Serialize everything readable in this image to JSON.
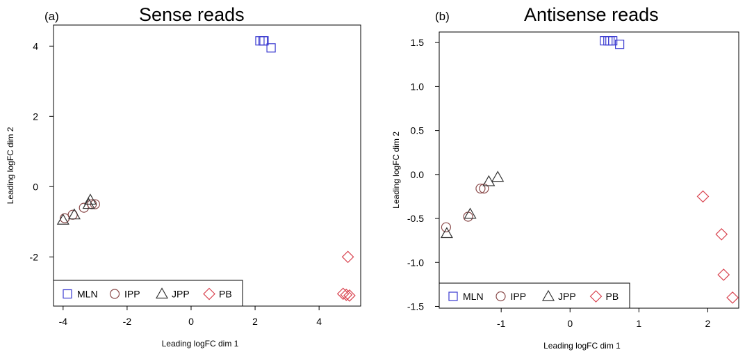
{
  "chart_data": [
    {
      "type": "scatter",
      "panel_label": "(a)",
      "title": "Sense reads",
      "xlabel": "Leading logFC dim 1",
      "ylabel": "Leading logFC dim 2",
      "xlim": [
        -4.3,
        5.3
      ],
      "ylim": [
        -3.4,
        4.6
      ],
      "xticks": [
        -4,
        -2,
        0,
        2,
        4
      ],
      "xtick_labels": [
        "-4",
        "-2",
        "0",
        "2",
        "4"
      ],
      "yticks": [
        -2,
        0,
        2,
        4
      ],
      "ytick_labels": [
        "-2",
        "0",
        "2",
        "4"
      ],
      "legend_placement": "bottom-left",
      "series": [
        {
          "name": "MLN",
          "marker": "square",
          "color": "#3a3ad0",
          "x": [
            2.15,
            2.25,
            2.28,
            2.5
          ],
          "y": [
            4.15,
            4.15,
            4.15,
            3.95
          ]
        },
        {
          "name": "IPP",
          "marker": "circle",
          "color": "#8a4a4a",
          "x": [
            -3.95,
            -3.7,
            -3.35,
            -3.0,
            -3.1
          ],
          "y": [
            -0.9,
            -0.8,
            -0.6,
            -0.5,
            -0.5
          ]
        },
        {
          "name": "JPP",
          "marker": "triangle",
          "color": "#333333",
          "x": [
            -4.0,
            -3.65,
            -3.2,
            -3.15
          ],
          "y": [
            -0.95,
            -0.8,
            -0.5,
            -0.38
          ]
        },
        {
          "name": "PB",
          "marker": "diamond",
          "color": "#d9434f",
          "x": [
            4.9,
            4.75,
            4.85,
            4.95
          ],
          "y": [
            -2.0,
            -3.05,
            -3.08,
            -3.1
          ]
        }
      ]
    },
    {
      "type": "scatter",
      "panel_label": "(b)",
      "title": "Antisense reads",
      "xlabel": "Leading logFC dim 1",
      "ylabel": "Leading logFC dim 2",
      "xlim": [
        -1.9,
        2.45
      ],
      "ylim": [
        -1.52,
        1.62
      ],
      "xticks": [
        -1,
        0,
        1,
        2
      ],
      "xtick_labels": [
        "-1",
        "0",
        "1",
        "2"
      ],
      "yticks": [
        1.5,
        1.0,
        0.5,
        0.0,
        -0.5,
        -1.0,
        -1.5
      ],
      "ytick_labels": [
        "1.5",
        "1.0",
        "0.5",
        "0.0",
        "-0.5",
        "-1.0",
        "-1.5"
      ],
      "legend_placement": "bottom-left",
      "series": [
        {
          "name": "MLN",
          "marker": "square",
          "color": "#3a3ad0",
          "x": [
            0.5,
            0.55,
            0.58,
            0.62,
            0.72
          ],
          "y": [
            1.52,
            1.52,
            1.52,
            1.52,
            1.48
          ]
        },
        {
          "name": "IPP",
          "marker": "circle",
          "color": "#8a4a4a",
          "x": [
            -1.8,
            -1.48,
            -1.3,
            -1.25
          ],
          "y": [
            -0.6,
            -0.48,
            -0.16,
            -0.16
          ]
        },
        {
          "name": "JPP",
          "marker": "triangle",
          "color": "#333333",
          "x": [
            -1.79,
            -1.45,
            -1.18,
            -1.05
          ],
          "y": [
            -0.67,
            -0.45,
            -0.08,
            -0.03
          ]
        },
        {
          "name": "PB",
          "marker": "diamond",
          "color": "#d9434f",
          "x": [
            1.93,
            2.2,
            2.23,
            2.36
          ],
          "y": [
            -0.25,
            -0.68,
            -1.14,
            -1.4
          ]
        }
      ]
    }
  ]
}
